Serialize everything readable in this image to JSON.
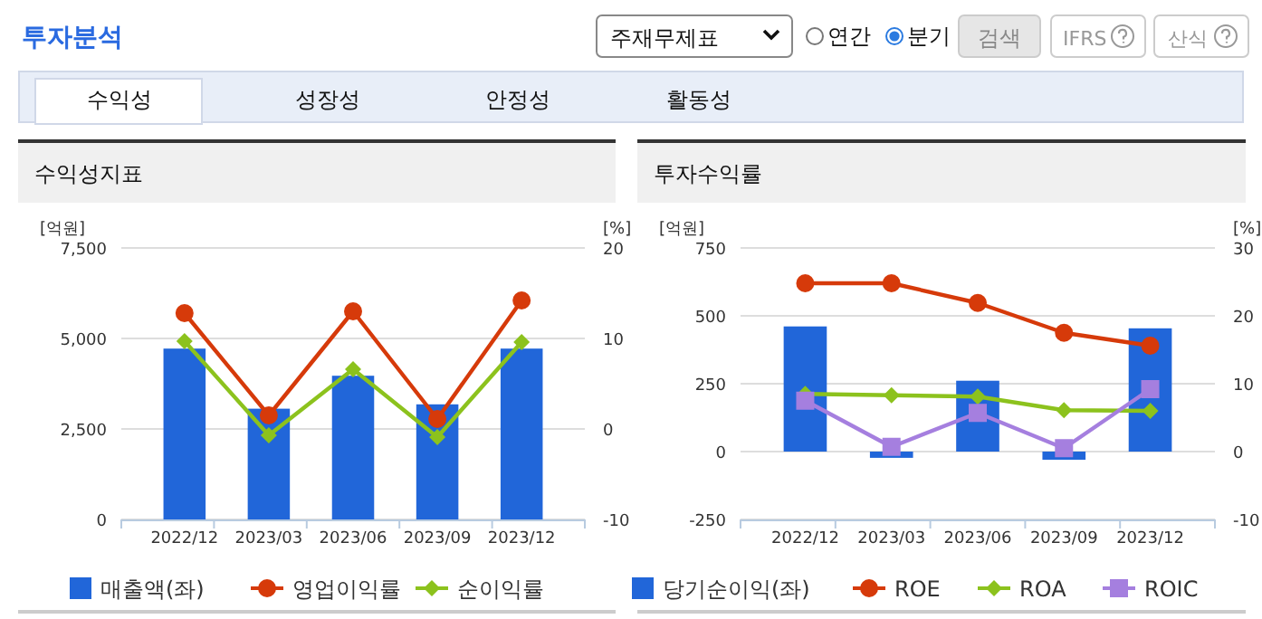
{
  "chart_data": [
    {
      "type": "other",
      "title": "투자분석",
      "annotations": [
        "주재무제표",
        "연간",
        "분기",
        "검색",
        "IFRS",
        "산식",
        "수익성",
        "성장성",
        "안정성",
        "활동성"
      ]
    },
    {
      "type": "bar",
      "title": "수익성지표",
      "ylabel": "[억원]",
      "y2label": "[%]",
      "categories": [
        "2022/12",
        "2023/03",
        "2023/06",
        "2023/09",
        "2023/12"
      ],
      "ylim": [
        0,
        7500
      ],
      "yticks": [
        {
          "value": 0,
          "label": "0"
        },
        {
          "value": 2500,
          "label": "2,500"
        },
        {
          "value": 5000,
          "label": "5,000"
        },
        {
          "value": 7500,
          "label": "7,500"
        }
      ],
      "y2lim": [
        -10,
        20
      ],
      "y2ticks": [
        -10,
        0,
        10,
        20
      ],
      "grid": "y",
      "legend": "bottom",
      "series": [
        {
          "name": "매출액(좌)",
          "type": "bar",
          "color": "#2166d9",
          "values": [
            4720,
            3060,
            3970,
            3180,
            4720
          ]
        },
        {
          "name": "영업이익률",
          "type": "line",
          "axis": "y2",
          "marker": "circle",
          "color": "#d63a0a",
          "values": [
            12.8,
            1.5,
            13.0,
            1.1,
            14.2
          ]
        },
        {
          "name": "순이익률",
          "type": "line",
          "axis": "y2",
          "marker": "diamond",
          "color": "#8cc21d",
          "values": [
            9.7,
            -0.7,
            6.6,
            -0.9,
            9.6
          ]
        }
      ]
    },
    {
      "type": "bar",
      "title": "투자수익률",
      "ylabel": "[억원]",
      "y2label": "[%]",
      "categories": [
        "2022/12",
        "2023/03",
        "2023/06",
        "2023/09",
        "2023/12"
      ],
      "ylim": [
        -250,
        750
      ],
      "yticks": [
        -250,
        0,
        250,
        500,
        750
      ],
      "y2lim": [
        -10,
        30
      ],
      "y2ticks": [
        -10,
        0,
        10,
        20,
        30
      ],
      "grid": "y",
      "legend": "bottom",
      "series": [
        {
          "name": "당기순이익(좌)",
          "type": "bar",
          "color": "#2166d9",
          "values": [
            461,
            -23,
            261,
            -30,
            454
          ]
        },
        {
          "name": "ROE",
          "type": "line",
          "axis": "y2",
          "marker": "circle",
          "color": "#d63a0a",
          "values": [
            24.8,
            24.8,
            21.9,
            17.5,
            15.6
          ]
        },
        {
          "name": "ROA",
          "type": "line",
          "axis": "y2",
          "marker": "diamond",
          "color": "#8cc21d",
          "values": [
            8.5,
            8.3,
            8.1,
            6.1,
            6.0
          ]
        },
        {
          "name": "ROIC",
          "type": "line",
          "axis": "y2",
          "marker": "square",
          "color": "#a57fdf",
          "values": [
            7.5,
            0.7,
            5.7,
            0.5,
            9.2
          ]
        }
      ]
    }
  ]
}
